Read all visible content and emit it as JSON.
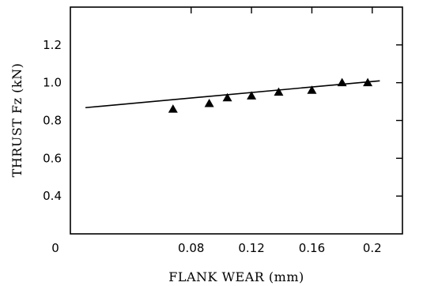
{
  "chart_data": {
    "type": "scatter",
    "title": "",
    "xlabel": "FLANK WEAR (mm)",
    "ylabel": "THRUST Fz (kN)",
    "xlim": [
      0.0,
      0.22
    ],
    "ylim": [
      0.2,
      1.4
    ],
    "x_ticks": [
      {
        "value": 0,
        "label": "0"
      },
      {
        "value": 0.08,
        "label": "0.08"
      },
      {
        "value": 0.12,
        "label": "0.12"
      },
      {
        "value": 0.16,
        "label": "0.16"
      },
      {
        "value": 0.2,
        "label": "0.2"
      }
    ],
    "y_ticks": [
      {
        "value": 0.4,
        "label": "0.4"
      },
      {
        "value": 0.6,
        "label": "0.6"
      },
      {
        "value": 0.8,
        "label": "0.8"
      },
      {
        "value": 1.0,
        "label": "1.0"
      },
      {
        "value": 1.2,
        "label": "1.2"
      }
    ],
    "series": [
      {
        "marker": "triangle",
        "color": "#000000",
        "points": [
          {
            "x": 0.068,
            "y": 0.86
          },
          {
            "x": 0.092,
            "y": 0.89
          },
          {
            "x": 0.104,
            "y": 0.92
          },
          {
            "x": 0.12,
            "y": 0.93
          },
          {
            "x": 0.138,
            "y": 0.95
          },
          {
            "x": 0.16,
            "y": 0.96
          },
          {
            "x": 0.18,
            "y": 1.0
          },
          {
            "x": 0.197,
            "y": 1.0
          }
        ]
      }
    ],
    "fit_line": {
      "x": [
        0.01,
        0.205
      ],
      "y": [
        0.868,
        1.01
      ],
      "color": "#000000"
    },
    "grid": false
  }
}
